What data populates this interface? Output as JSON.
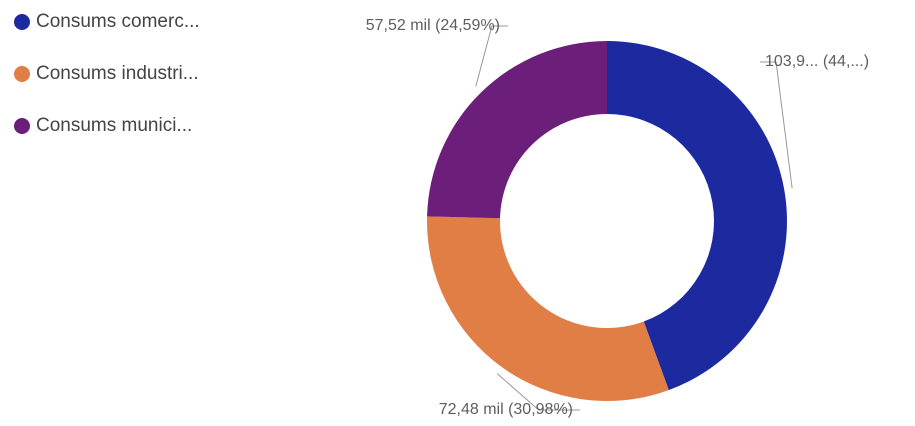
{
  "chart_data": {
    "type": "donut",
    "categories": [
      "Consums comerc...",
      "Consums industri...",
      "Consums munici..."
    ],
    "series": [
      {
        "values": [
          103.92,
          72.48,
          57.52
        ],
        "value_labels": [
          "103,9... (44,...)",
          "72,48 mil (30,98%)",
          "57,52 mil (24,59%)"
        ]
      }
    ],
    "colors": [
      "#1d2a9f",
      "#e07e45",
      "#6b1f7a"
    ],
    "legend": "top-left"
  }
}
